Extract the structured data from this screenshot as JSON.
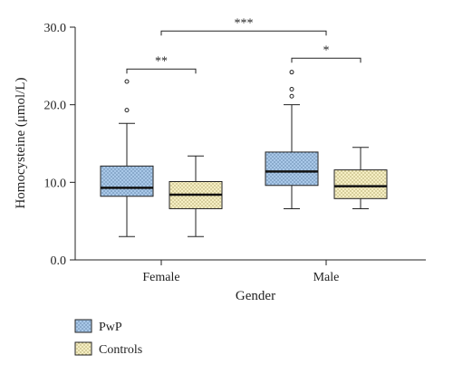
{
  "chart_data": {
    "type": "box",
    "xlabel": "Gender",
    "ylabel": "Homocysteine (μmol/L)",
    "ylim": [
      0,
      30
    ],
    "yticks": [
      "0.0",
      "10.0",
      "20.0",
      "30.0"
    ],
    "categories": [
      "Female",
      "Male"
    ],
    "series": [
      {
        "name": "PwP",
        "color": "#a9c8e8",
        "pattern": "dots",
        "boxes": [
          {
            "category": "Female",
            "min": 3.0,
            "q1": 8.2,
            "median": 9.3,
            "q3": 12.1,
            "max": 17.6,
            "outliers": [
              19.3,
              23.0
            ]
          },
          {
            "category": "Male",
            "min": 6.6,
            "q1": 9.6,
            "median": 11.4,
            "q3": 13.9,
            "max": 20.0,
            "outliers": [
              21.1,
              22.0,
              24.2
            ]
          }
        ]
      },
      {
        "name": "Controls",
        "color": "#f6efc4",
        "pattern": "dots",
        "boxes": [
          {
            "category": "Female",
            "min": 3.0,
            "q1": 6.6,
            "median": 8.4,
            "q3": 10.1,
            "max": 13.4,
            "outliers": []
          },
          {
            "category": "Male",
            "min": 6.6,
            "q1": 7.9,
            "median": 9.5,
            "q3": 11.6,
            "max": 14.5,
            "outliers": []
          }
        ]
      }
    ],
    "significance": [
      {
        "label": "**",
        "from": "Female PwP",
        "to": "Female Controls",
        "y": 24.6
      },
      {
        "label": "*",
        "from": "Male PwP",
        "to": "Male Controls",
        "y": 26.0
      },
      {
        "label": "***",
        "from": "Female",
        "to": "Male",
        "y": 29.5
      }
    ],
    "legend": {
      "placement": "bottom-left",
      "entries": [
        "PwP",
        "Controls"
      ]
    }
  }
}
